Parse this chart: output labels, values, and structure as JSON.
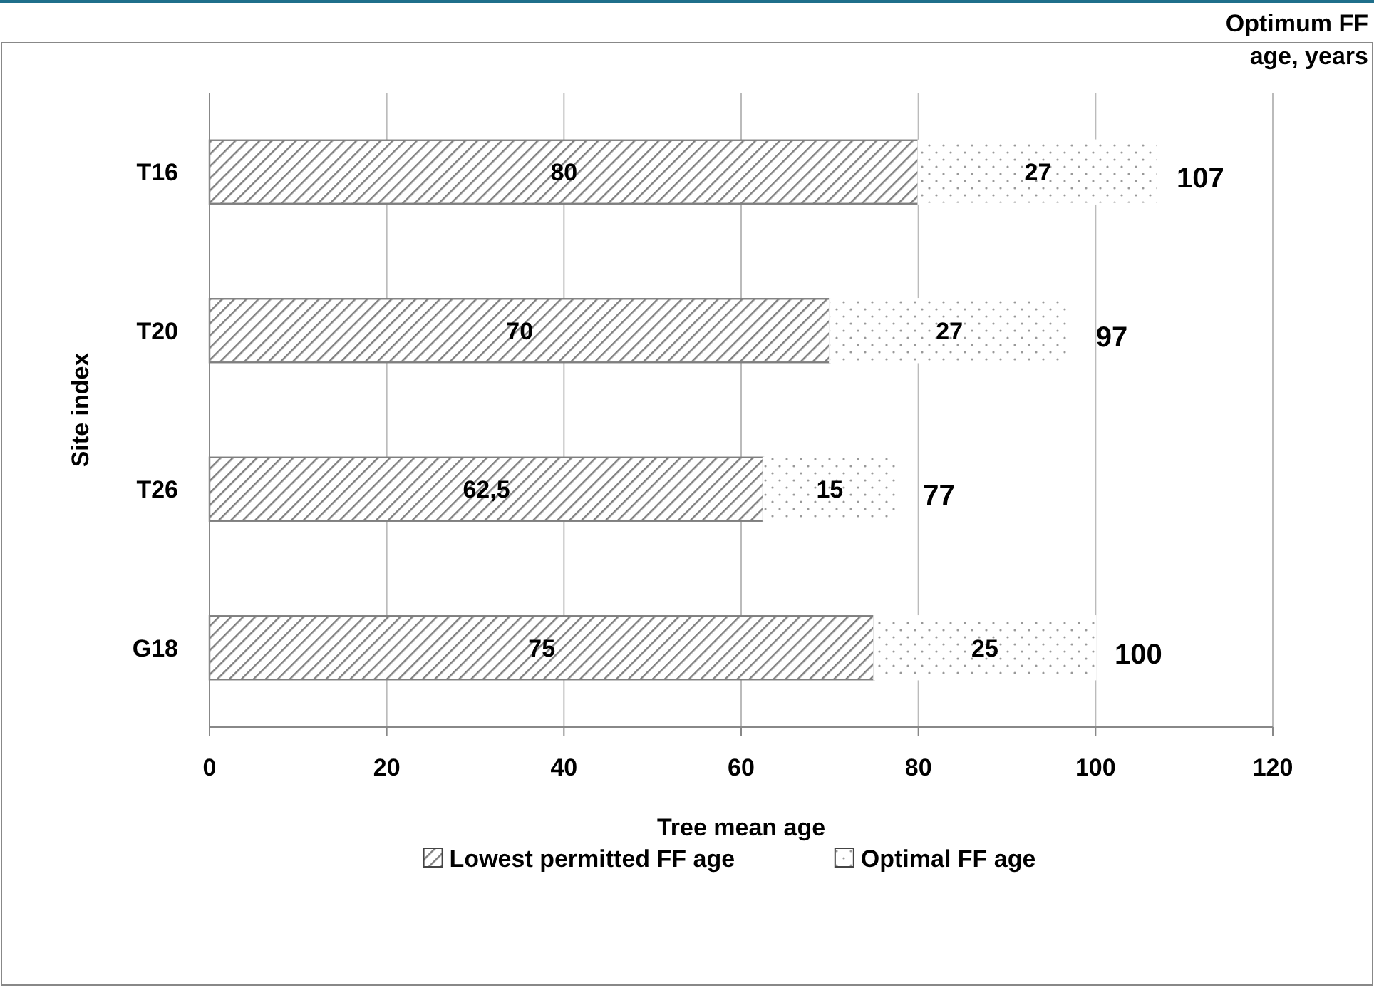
{
  "chart_data": {
    "type": "bar",
    "orientation": "horizontal",
    "stacked": true,
    "xlabel": "Tree mean age",
    "ylabel": "Site index",
    "categories": [
      "T16",
      "T20",
      "T26",
      "G18"
    ],
    "series": [
      {
        "name": "Lowest permitted FF age",
        "color": "#7f7f7f",
        "values": [
          80,
          70,
          62.5,
          75
        ],
        "value_labels": [
          "80",
          "70",
          "62,5",
          "75"
        ]
      },
      {
        "name": "Optimal FF age",
        "color": "#ffffff",
        "values": [
          27,
          27,
          15,
          25
        ],
        "value_labels": [
          "27",
          "27",
          "15",
          "25"
        ]
      }
    ],
    "totals": [
      "107",
      "97",
      "77",
      "100"
    ],
    "annotations": [
      "Optimum FF age, years"
    ],
    "xlim": [
      0,
      120
    ],
    "xticks": [
      0,
      20,
      40,
      60,
      80,
      100,
      120
    ],
    "grid": "x",
    "legend": "bottom"
  }
}
